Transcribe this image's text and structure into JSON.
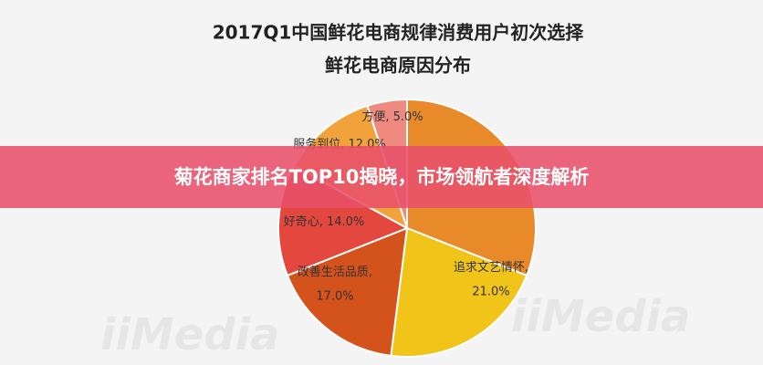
{
  "chart_data": {
    "type": "pie",
    "title": "2017Q1中国鲜花电商规律消费用户初次选择",
    "subtitle": "鲜花电商原因分布",
    "categories": [
      null,
      "追求文艺情怀",
      "改善生活品质",
      "好奇心",
      "服务到位",
      "方便"
    ],
    "values": [
      31,
      21,
      17,
      14,
      12,
      5
    ],
    "value_labels": [
      null,
      "21.0%",
      "17.0%",
      "14.0%",
      "12.0%",
      "5.0%"
    ],
    "label_separator": ", ",
    "colors": [
      "#e8892a",
      "#f0c419",
      "#d4531c",
      "#e4473d",
      "#f2a23a",
      "#ef8a80"
    ],
    "watermark": "iiMedia"
  },
  "banner": {
    "text": "菊花商家排名TOP10揭晓，市场领航者深度解析"
  }
}
